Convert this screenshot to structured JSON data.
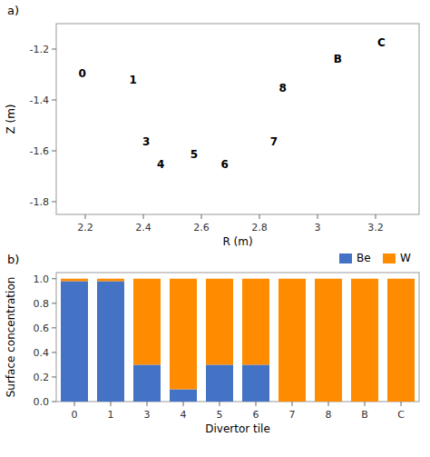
{
  "chart_data": [
    {
      "type": "schematic",
      "title": "a)",
      "xlabel": "R (m)",
      "ylabel": "Z (m)",
      "xlim": [
        2.1,
        3.35
      ],
      "ylim": [
        -1.85,
        -1.1
      ],
      "xticks": [
        2.2,
        2.4,
        2.6,
        2.8,
        3.0,
        3.2
      ],
      "yticks": [
        -1.8,
        -1.6,
        -1.4,
        -1.2
      ],
      "annotations": [
        {
          "text": "0",
          "x": 2.19,
          "y": -1.295
        },
        {
          "text": "1",
          "x": 2.365,
          "y": -1.32
        },
        {
          "text": "3",
          "x": 2.41,
          "y": -1.565
        },
        {
          "text": "4",
          "x": 2.46,
          "y": -1.655
        },
        {
          "text": "5",
          "x": 2.575,
          "y": -1.615
        },
        {
          "text": "6",
          "x": 2.68,
          "y": -1.655
        },
        {
          "text": "7",
          "x": 2.85,
          "y": -1.565
        },
        {
          "text": "8",
          "x": 2.88,
          "y": -1.355
        },
        {
          "text": "B",
          "x": 3.07,
          "y": -1.24
        },
        {
          "text": "C",
          "x": 3.22,
          "y": -1.175
        }
      ]
    },
    {
      "type": "bar",
      "title": "b)",
      "stacked": true,
      "legend": "upper right",
      "xlabel": "Divertor tile",
      "ylabel": "Surface concentration",
      "categories": [
        "0",
        "1",
        "3",
        "4",
        "5",
        "6",
        "7",
        "8",
        "B",
        "C"
      ],
      "series": [
        {
          "name": "Be",
          "color": "#4472C4",
          "values": [
            0.98,
            0.98,
            0.3,
            0.1,
            0.3,
            0.3,
            0.0,
            0.0,
            0.0,
            0.0
          ]
        },
        {
          "name": "W",
          "color": "#FF8C00",
          "values": [
            0.02,
            0.02,
            0.7,
            0.9,
            0.7,
            0.7,
            1.0,
            1.0,
            1.0,
            1.0
          ]
        }
      ],
      "ylim": [
        0.0,
        1.05
      ],
      "yticks": [
        {
          "value": 0,
          "label": "0.0"
        },
        0.2,
        0.4,
        0.6,
        0.8,
        {
          "value": 1,
          "label": "1.0"
        }
      ]
    }
  ]
}
